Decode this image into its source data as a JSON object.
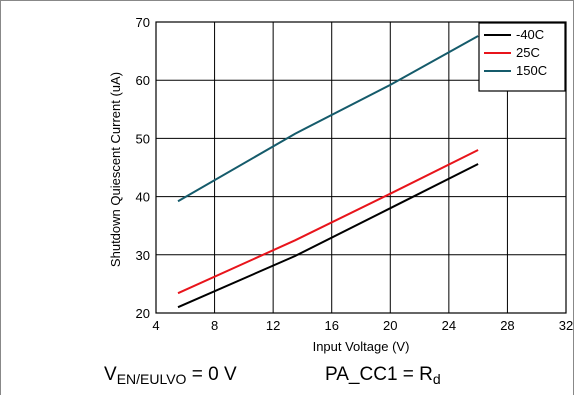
{
  "chart_data": {
    "type": "line",
    "title": "",
    "xlabel": "Input Voltage (V)",
    "ylabel": "Shutdown Quiescent Current (uA)",
    "xlim": [
      4,
      32
    ],
    "ylim": [
      20,
      70
    ],
    "xticks": [
      4,
      8,
      12,
      16,
      20,
      24,
      28,
      32
    ],
    "yticks": [
      20,
      30,
      40,
      50,
      60,
      70
    ],
    "grid": true,
    "legend_position": "top-right",
    "series": [
      {
        "name": "-40C",
        "color": "#000000",
        "x": [
          5.5,
          13.5,
          20,
          26
        ],
        "y": [
          21,
          29.8,
          38,
          45.6
        ]
      },
      {
        "name": "25C",
        "color": "#e8141b",
        "x": [
          5.5,
          13.5,
          20,
          26
        ],
        "y": [
          23.4,
          32.5,
          40.5,
          48
        ]
      },
      {
        "name": "150C",
        "color": "#155b6b",
        "x": [
          5.5,
          13.5,
          20,
          26
        ],
        "y": [
          39.2,
          50.8,
          59.2,
          67.6
        ]
      }
    ]
  },
  "annotations": {
    "left_main": "V",
    "left_sub": "EN/EULVO",
    "left_rest": " = 0 V",
    "right_main": "PA_CC1 = R",
    "right_sub": "d"
  }
}
